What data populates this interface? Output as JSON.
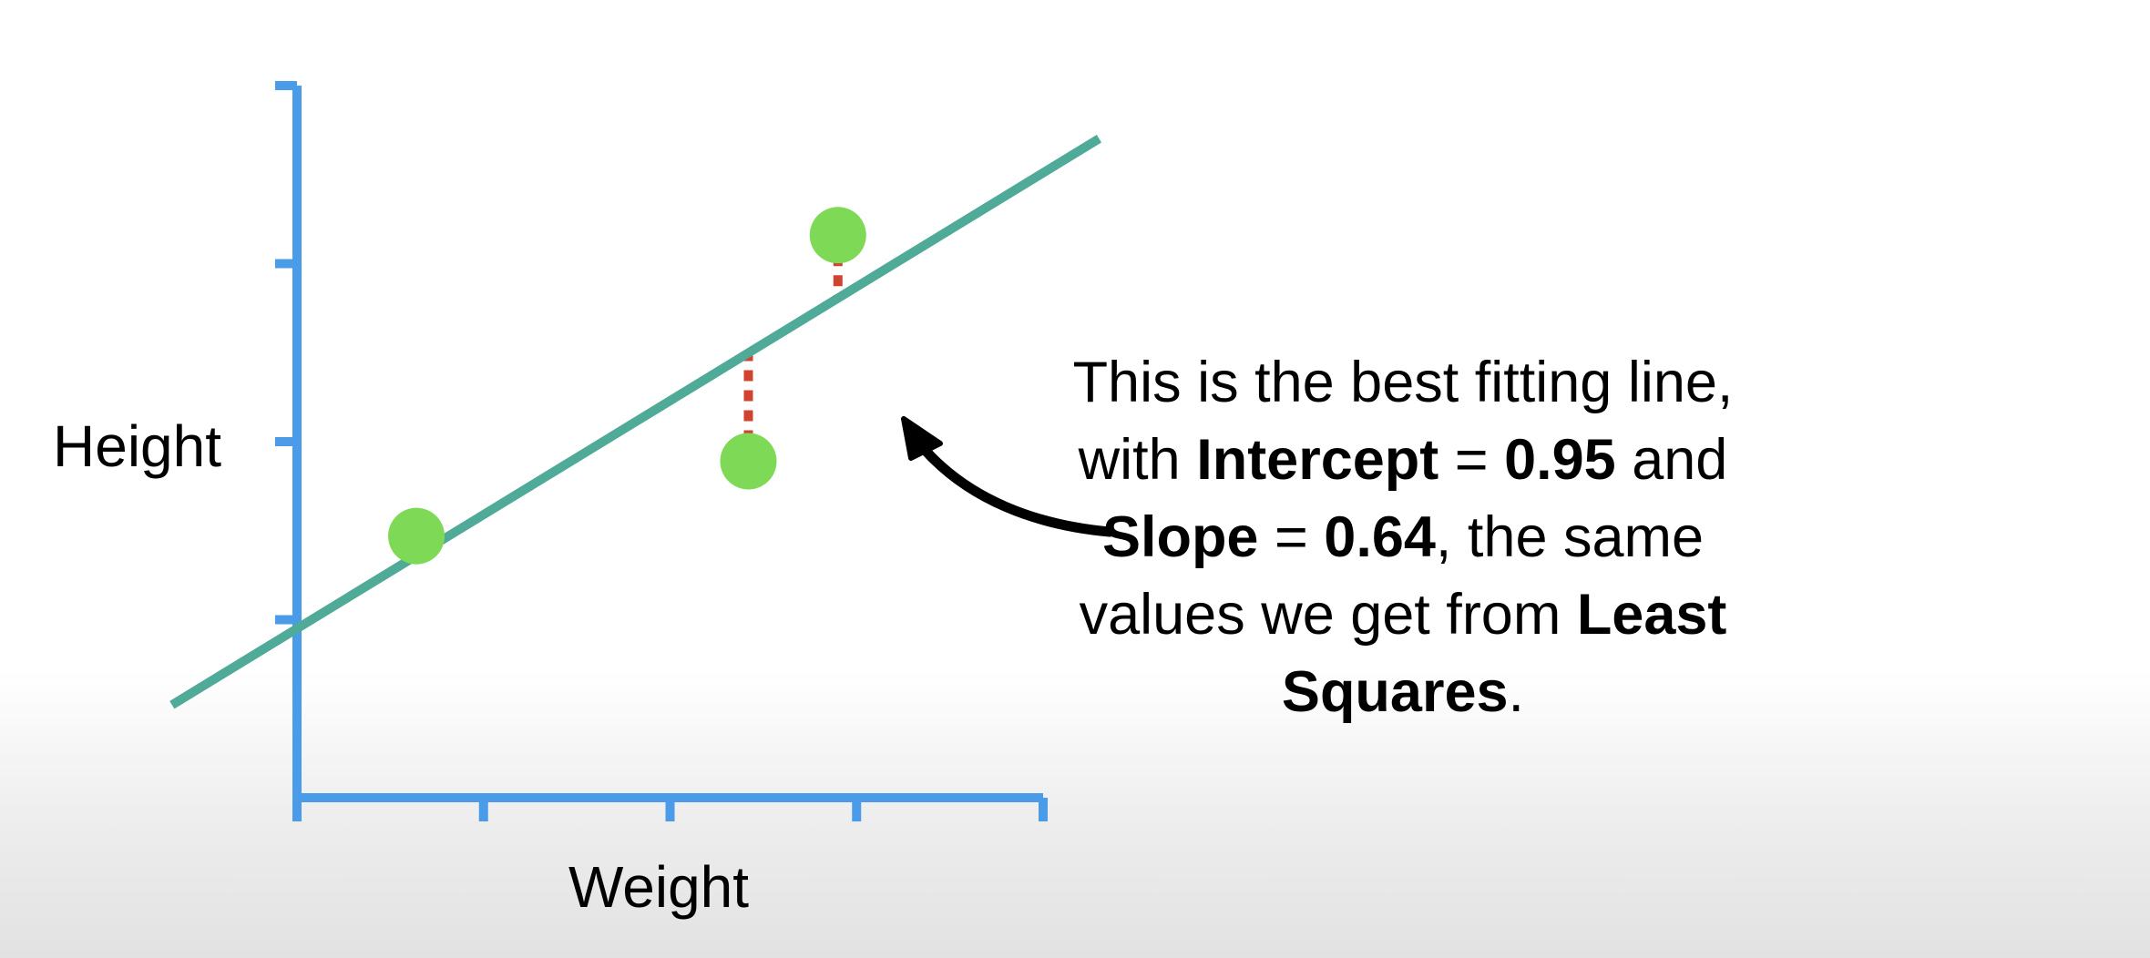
{
  "chart_data": {
    "type": "scatter",
    "xlabel": "Weight",
    "ylabel": "Height",
    "xlim": [
      0,
      4
    ],
    "ylim": [
      0,
      4
    ],
    "points": [
      {
        "x": 0.64,
        "y": 1.47
      },
      {
        "x": 2.42,
        "y": 1.89
      },
      {
        "x": 2.9,
        "y": 3.16
      }
    ],
    "fit_line": {
      "intercept": 0.95,
      "slope": 0.64,
      "x_range": [
        -0.67,
        4.3
      ]
    },
    "residuals": true,
    "colors": {
      "axis": "#4a9be8",
      "line": "#4faa98",
      "points": "#7ed957",
      "residual": "#d2432f",
      "arrow": "#000000"
    }
  },
  "annotation": {
    "l1": "This is the best fitting line,",
    "l2a": "with ",
    "l2b": "Intercept",
    "l2c": " = ",
    "l2d": "0.95",
    "l2e": " and",
    "l3a": "Slope",
    "l3b": " = ",
    "l3c": "0.64",
    "l3d": ", the same",
    "l4a": "values we get from ",
    "l4b": "Least",
    "l5a": "Squares",
    "l5b": "."
  }
}
